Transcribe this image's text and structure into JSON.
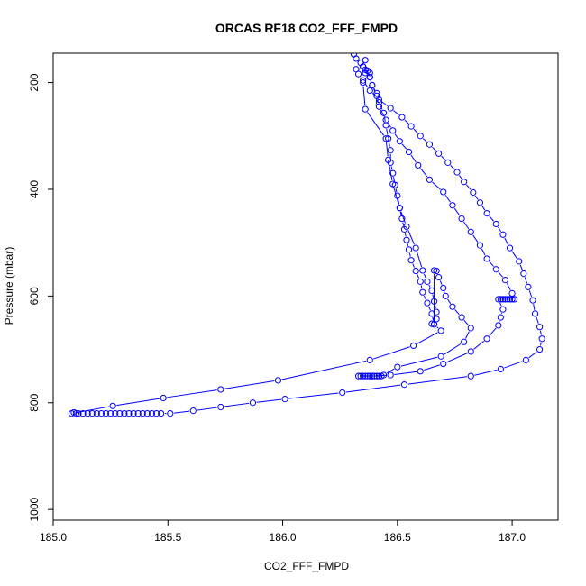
{
  "chart_data": {
    "type": "line",
    "title": "ORCAS RF18 CO2_FFF_FMPD",
    "xlabel": "CO2_FFF_FMPD",
    "ylabel": "Pressure (mbar)",
    "xlim": [
      185.0,
      187.2
    ],
    "ylim": [
      1020,
      145
    ],
    "y_reversed": true,
    "x_ticks": [
      "185.0",
      "185.5",
      "186.0",
      "186.5",
      "187.0"
    ],
    "y_ticks": [
      "200",
      "400",
      "600",
      "800",
      "1000"
    ],
    "grid": false,
    "colors": {
      "series": "#0000ff",
      "frame": "#000000"
    },
    "series": [
      {
        "marker": "open-circle",
        "points": [
          [
            186.31,
            147
          ],
          [
            186.32,
            155
          ],
          [
            186.34,
            163
          ],
          [
            186.35,
            170
          ],
          [
            186.36,
            176
          ],
          [
            186.36,
            182
          ],
          [
            186.38,
            190
          ],
          [
            186.39,
            205
          ],
          [
            186.41,
            220
          ],
          [
            186.42,
            237
          ],
          [
            186.44,
            257
          ],
          [
            186.45,
            280
          ],
          [
            186.46,
            305
          ],
          [
            186.47,
            327
          ],
          [
            186.47,
            350
          ],
          [
            186.48,
            370
          ],
          [
            186.49,
            392
          ],
          [
            186.5,
            412
          ],
          [
            186.51,
            435
          ],
          [
            186.52,
            455
          ],
          [
            186.53,
            475
          ],
          [
            186.54,
            495
          ],
          [
            186.55,
            513
          ],
          [
            186.56,
            533
          ],
          [
            186.58,
            553
          ],
          [
            186.6,
            573
          ],
          [
            186.61,
            593
          ],
          [
            186.63,
            613
          ],
          [
            186.65,
            633
          ],
          [
            186.66,
            653
          ],
          [
            186.69,
            665
          ],
          [
            186.57,
            693
          ],
          [
            186.38,
            720
          ],
          [
            185.98,
            758
          ],
          [
            185.73,
            775
          ],
          [
            185.48,
            791
          ],
          [
            185.26,
            806
          ],
          [
            185.08,
            820
          ],
          [
            185.09,
            818
          ],
          [
            185.1,
            820
          ],
          [
            185.11,
            820
          ],
          [
            185.13,
            820
          ],
          [
            185.15,
            820
          ],
          [
            185.17,
            820
          ],
          [
            185.19,
            820
          ],
          [
            185.21,
            820
          ],
          [
            185.23,
            820
          ],
          [
            185.25,
            820
          ],
          [
            185.27,
            820
          ],
          [
            185.29,
            820
          ],
          [
            185.31,
            820
          ],
          [
            185.33,
            820
          ],
          [
            185.35,
            820
          ],
          [
            185.37,
            820
          ],
          [
            185.39,
            820
          ],
          [
            185.41,
            820
          ],
          [
            185.43,
            820
          ],
          [
            185.45,
            820
          ],
          [
            185.47,
            820
          ],
          [
            185.51,
            820
          ],
          [
            185.61,
            815
          ],
          [
            185.73,
            808
          ],
          [
            185.87,
            800
          ],
          [
            186.01,
            793
          ],
          [
            186.26,
            781
          ],
          [
            186.53,
            766
          ],
          [
            186.82,
            750
          ],
          [
            186.95,
            737
          ],
          [
            187.06,
            720
          ],
          [
            187.12,
            700
          ],
          [
            187.13,
            680
          ],
          [
            187.12,
            658
          ],
          [
            187.1,
            633
          ],
          [
            187.09,
            608
          ],
          [
            187.07,
            583
          ],
          [
            187.05,
            558
          ],
          [
            187.03,
            535
          ],
          [
            186.99,
            510
          ],
          [
            186.96,
            485
          ],
          [
            186.93,
            465
          ],
          [
            186.89,
            445
          ],
          [
            186.86,
            425
          ],
          [
            186.83,
            406
          ],
          [
            186.79,
            386
          ],
          [
            186.76,
            368
          ],
          [
            186.72,
            350
          ],
          [
            186.68,
            333
          ],
          [
            186.64,
            316
          ],
          [
            186.6,
            300
          ],
          [
            186.56,
            282
          ],
          [
            186.52,
            265
          ],
          [
            186.47,
            248
          ],
          [
            186.42,
            232
          ],
          [
            186.38,
            215
          ],
          [
            186.35,
            196
          ],
          [
            186.33,
            184
          ],
          [
            186.32,
            175
          ]
        ]
      },
      {
        "marker": "open-circle",
        "points": [
          [
            186.37,
            178
          ],
          [
            186.38,
            182
          ],
          [
            186.35,
            200
          ],
          [
            186.36,
            250
          ],
          [
            186.45,
            305
          ],
          [
            186.46,
            345
          ],
          [
            186.48,
            390
          ],
          [
            186.51,
            435
          ],
          [
            186.54,
            470
          ],
          [
            186.58,
            510
          ],
          [
            186.61,
            552
          ],
          [
            186.63,
            573
          ],
          [
            186.65,
            590
          ],
          [
            186.66,
            610
          ],
          [
            186.67,
            630
          ],
          [
            186.67,
            643
          ],
          [
            186.65,
            652
          ],
          [
            186.66,
            653
          ],
          [
            186.66,
            552
          ],
          [
            186.67,
            553
          ],
          [
            186.68,
            565
          ],
          [
            186.7,
            585
          ],
          [
            186.71,
            600
          ],
          [
            186.74,
            620
          ],
          [
            186.78,
            640
          ],
          [
            186.82,
            660
          ],
          [
            186.79,
            686
          ],
          [
            186.69,
            713
          ],
          [
            186.5,
            733
          ],
          [
            186.44,
            748
          ],
          [
            186.43,
            750
          ],
          [
            186.42,
            750
          ],
          [
            186.41,
            750
          ],
          [
            186.4,
            750
          ],
          [
            186.39,
            750
          ],
          [
            186.38,
            750
          ],
          [
            186.37,
            750
          ],
          [
            186.36,
            750
          ],
          [
            186.35,
            750
          ],
          [
            186.34,
            750
          ],
          [
            186.33,
            750
          ],
          [
            186.39,
            750
          ],
          [
            186.47,
            748
          ],
          [
            186.6,
            741
          ],
          [
            186.7,
            727
          ],
          [
            186.82,
            704
          ],
          [
            186.89,
            680
          ],
          [
            186.94,
            655
          ],
          [
            186.95,
            640
          ],
          [
            186.96,
            625
          ],
          [
            186.94,
            606
          ],
          [
            186.95,
            606
          ],
          [
            186.96,
            606
          ],
          [
            186.97,
            606
          ],
          [
            186.98,
            606
          ],
          [
            186.99,
            606
          ],
          [
            187.0,
            606
          ],
          [
            187.01,
            606
          ],
          [
            187.0,
            595
          ],
          [
            186.97,
            570
          ],
          [
            186.93,
            550
          ],
          [
            186.89,
            530
          ],
          [
            186.86,
            505
          ],
          [
            186.82,
            480
          ],
          [
            186.78,
            455
          ],
          [
            186.74,
            430
          ],
          [
            186.7,
            405
          ],
          [
            186.64,
            382
          ],
          [
            186.59,
            355
          ],
          [
            186.55,
            330
          ],
          [
            186.51,
            310
          ],
          [
            186.48,
            290
          ],
          [
            186.45,
            270
          ],
          [
            186.42,
            245
          ],
          [
            186.41,
            225
          ],
          [
            186.39,
            205
          ],
          [
            186.38,
            190
          ],
          [
            186.35,
            170
          ],
          [
            186.36,
            158
          ]
        ]
      }
    ]
  }
}
